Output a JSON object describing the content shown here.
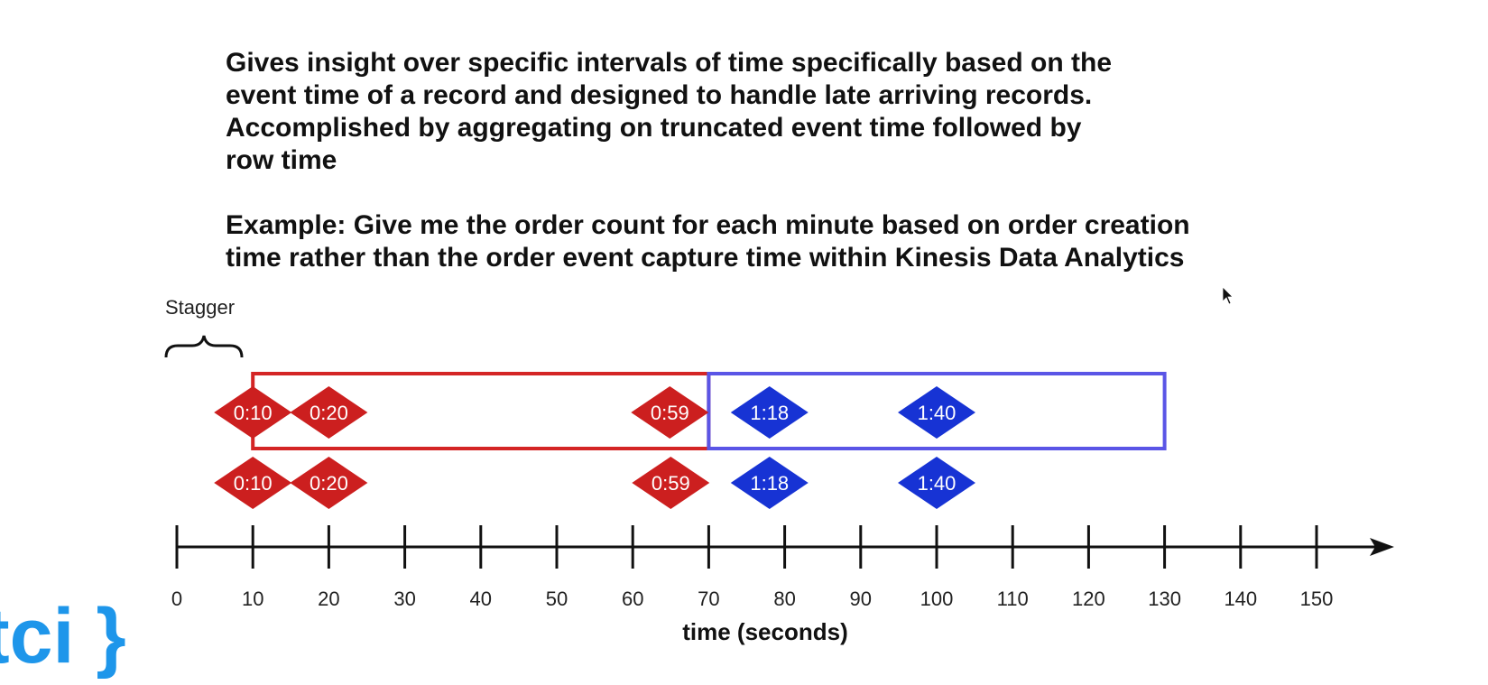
{
  "description": {
    "line1": "Gives insight over specific intervals of time specifically based on the",
    "line2": "event time of a record and designed to handle late arriving records.",
    "line3": "Accomplished by aggregating on truncated event time followed by",
    "line4": "row time",
    "example_line1": "Example: Give me the order count for each minute based on order creation",
    "example_line2": "time rather than the order event capture time within Kinesis Data Analytics"
  },
  "stagger_label": "Stagger",
  "axis": {
    "label": "time (seconds)",
    "ticks": [
      "0",
      "10",
      "20",
      "30",
      "40",
      "50",
      "60",
      "70",
      "80",
      "90",
      "100",
      "110",
      "120",
      "130",
      "140",
      "150"
    ]
  },
  "windows": [
    {
      "start": 10,
      "end": 70,
      "color": "#d42525"
    },
    {
      "start": 70,
      "end": 130,
      "color": "#5a55e6"
    }
  ],
  "events": [
    {
      "label": "0:10",
      "t": 10,
      "color": "#cc1f1f"
    },
    {
      "label": "0:20",
      "t": 20,
      "color": "#cc1f1f"
    },
    {
      "label": "0:59",
      "t": 65,
      "color": "#cc1f1f"
    },
    {
      "label": "1:18",
      "t": 78,
      "color": "#1733d4"
    },
    {
      "label": "1:40",
      "t": 100,
      "color": "#1733d4"
    }
  ],
  "logo_text": "tci }",
  "logo_color": "#1e96ea"
}
